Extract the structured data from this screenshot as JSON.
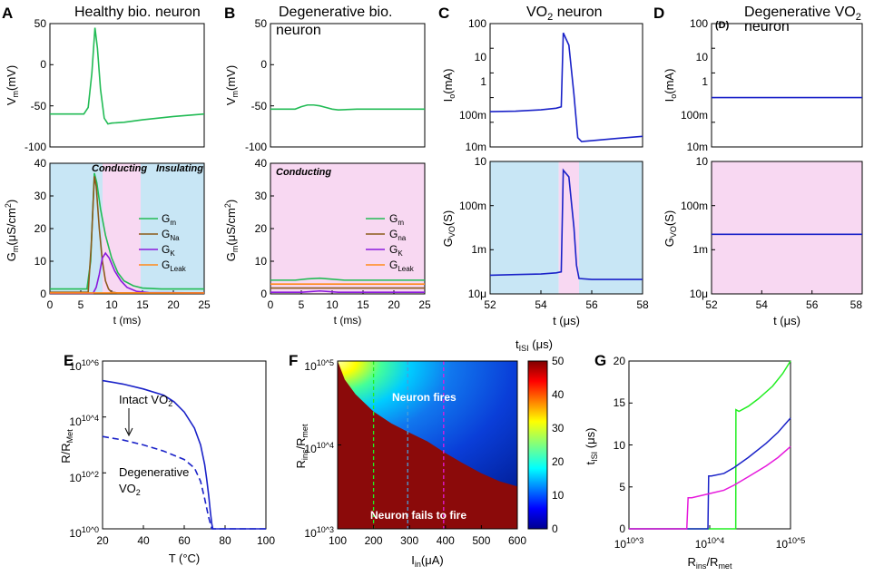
{
  "colors": {
    "green": "#22bb55",
    "brown": "#8a5a1a",
    "purple": "#8a1adc",
    "orange": "#ff8a1a",
    "blue": "#1a22c8",
    "lightblue": "#c8e6f5",
    "pink": "#f8d8f2",
    "magenta": "#e61adc",
    "dkred": "#8b0a0a",
    "curve_green": "#22ee22"
  },
  "panels": {
    "A": {
      "letter": "A",
      "title": "Healthy bio. neuron"
    },
    "B": {
      "letter": "B",
      "title": "Degenerative  bio.",
      "title2": "neuron"
    },
    "C": {
      "letter": "C",
      "title": "VO",
      "title_sub": "2",
      "title_tail": " neuron"
    },
    "D": {
      "letter": "D",
      "title": "Degenerative VO",
      "title_sub": "2",
      "title2": "neuron",
      "inner_tag": "(D)"
    },
    "E": {
      "letter": "E"
    },
    "F": {
      "letter": "F"
    },
    "G": {
      "letter": "G"
    }
  },
  "annotations": {
    "conducting": "Conducting",
    "insulating": "Insulating",
    "intact": "Intact VO",
    "intact_sub": "2",
    "degenerative": "Degenerative",
    "degenerative_vo": "VO",
    "degenerative_sub": "2",
    "fires": "Neuron fires",
    "fails": "Neuron fails to fire"
  },
  "legend": {
    "items": [
      {
        "main": "G",
        "sub": "m"
      },
      {
        "main": "G",
        "sub": "Na"
      },
      {
        "main": "G",
        "sub": "K"
      },
      {
        "main": "G",
        "sub": "Leak"
      }
    ],
    "items_b": [
      {
        "main": "G",
        "sub": "m"
      },
      {
        "main": "G",
        "sub": "na"
      },
      {
        "main": "G",
        "sub": "K"
      },
      {
        "main": "G",
        "sub": "Leak"
      }
    ]
  },
  "axes": {
    "vm": {
      "main": "V",
      "sub": "m",
      "tail": "(mV)"
    },
    "gm": {
      "main": "G",
      "sub": "m",
      "tail": "(μS/cm",
      "sup": "2",
      "end": ")"
    },
    "t_ms": "t (ms)",
    "io": {
      "main": "I",
      "sub": "o",
      "tail": "(mA)"
    },
    "gvo": {
      "main": "G",
      "sub": "VO",
      "tail": "(S)"
    },
    "t_us": "t (μs)",
    "r_rmet": {
      "main": "R/R",
      "sub": "Met"
    },
    "temp": "T (°C)",
    "rins": {
      "main": "R",
      "sub": "ins",
      "mid": "/R",
      "sub2": "met"
    },
    "iin": {
      "main": "I",
      "sub": "in",
      "tail": "(μA)"
    },
    "tisi": {
      "main": "t",
      "sub": "ISI",
      "tail": " (μs)"
    },
    "tisi_g": {
      "main": "t",
      "sub": "ISI",
      "tail": " (μs)"
    }
  },
  "chart_data": [
    {
      "id": "A-top",
      "type": "line",
      "title": "Healthy bio. neuron",
      "xlim": [
        0,
        25
      ],
      "ylim": [
        -100,
        50
      ],
      "ylabel": "Vm(mV)",
      "yticks": [
        "50",
        "0",
        "-50",
        "-100"
      ],
      "series": [
        {
          "name": "Vm",
          "color": "green",
          "x": [
            0,
            5.5,
            6.2,
            6.8,
            7.3,
            7.7,
            8.2,
            8.8,
            9.4,
            10,
            12,
            15,
            20,
            25
          ],
          "y": [
            -60,
            -60,
            -52,
            -10,
            45,
            20,
            -30,
            -65,
            -72,
            -71,
            -70,
            -67,
            -63,
            -60
          ]
        }
      ]
    },
    {
      "id": "A-bottom",
      "type": "line",
      "xlabel": "t (ms)",
      "ylabel": "Gm(μS/cm2)",
      "xlim": [
        0,
        25
      ],
      "ylim": [
        0,
        40
      ],
      "xticks": [
        "0",
        "5",
        "10",
        "15",
        "20",
        "25"
      ],
      "yticks": [
        "0",
        "10",
        "20",
        "30",
        "40"
      ],
      "regions": [
        {
          "from": 0,
          "to": 6.8,
          "label": "Conducting",
          "color": "lightblue"
        },
        {
          "from": 6.8,
          "to": 15,
          "label": "",
          "color": "pink"
        },
        {
          "from": 15,
          "to": 25,
          "label": "Insulating",
          "color": "lightblue"
        }
      ],
      "series": [
        {
          "name": "Gm",
          "color": "green",
          "x": [
            0,
            6,
            6.6,
            7.2,
            7.6,
            8.2,
            9,
            10,
            11,
            12,
            13.5,
            15,
            18,
            25
          ],
          "y": [
            1.5,
            1.5,
            10,
            37,
            34,
            26,
            18,
            11,
            6.5,
            4,
            2.5,
            1.8,
            1.5,
            1.5
          ]
        },
        {
          "name": "GNa",
          "color": "brown",
          "x": [
            0,
            6.2,
            6.7,
            7.2,
            7.5,
            8,
            8.5,
            9,
            9.5,
            10,
            11,
            25
          ],
          "y": [
            0.5,
            0.5,
            15,
            36,
            33,
            20,
            10,
            4,
            1.5,
            0.5,
            0.3,
            0.3
          ]
        },
        {
          "name": "GK",
          "color": "purple",
          "x": [
            0,
            7,
            7.5,
            8,
            8.5,
            9,
            9.6,
            10.5,
            11.5,
            12.5,
            14,
            16,
            25
          ],
          "y": [
            0.2,
            0.2,
            2,
            6,
            11,
            12.5,
            11,
            7,
            4,
            2,
            0.8,
            0.4,
            0.3
          ]
        },
        {
          "name": "GLeak",
          "color": "orange",
          "x": [
            0,
            25
          ],
          "y": [
            0.3,
            0.3
          ]
        }
      ]
    },
    {
      "id": "B-top",
      "type": "line",
      "title": "Degenerative bio. neuron",
      "xlim": [
        0,
        25
      ],
      "ylim": [
        -100,
        50
      ],
      "ylabel": "Vm(mV)",
      "yticks": [
        "50",
        "0",
        "-50",
        "-100"
      ],
      "series": [
        {
          "name": "Vm",
          "color": "green",
          "x": [
            0,
            4,
            5,
            6,
            7,
            8,
            9,
            10,
            11,
            14,
            18,
            25
          ],
          "y": [
            -54,
            -54,
            -51,
            -49,
            -49,
            -50,
            -52,
            -54,
            -55,
            -54,
            -54,
            -54
          ]
        }
      ]
    },
    {
      "id": "B-bottom",
      "type": "line",
      "xlabel": "t (ms)",
      "ylabel": "Gm(μS/cm2)",
      "xlim": [
        0,
        25
      ],
      "ylim": [
        0,
        40
      ],
      "xticks": [
        "0",
        "5",
        "10",
        "15",
        "20",
        "25"
      ],
      "yticks": [
        "0",
        "10",
        "20",
        "30",
        "40"
      ],
      "regions": [
        {
          "from": 0,
          "to": 25,
          "label": "Conducting",
          "color": "pink"
        }
      ],
      "series": [
        {
          "name": "Gm",
          "color": "green",
          "x": [
            0,
            4,
            6,
            8,
            10,
            12,
            25
          ],
          "y": [
            4.2,
            4.2,
            4.6,
            4.8,
            4.5,
            4.2,
            4.2
          ]
        },
        {
          "name": "Gna",
          "color": "brown",
          "x": [
            0,
            25
          ],
          "y": [
            1.8,
            1.8
          ]
        },
        {
          "name": "GK",
          "color": "purple",
          "x": [
            0,
            5,
            8,
            11,
            25
          ],
          "y": [
            0.5,
            0.5,
            0.9,
            0.5,
            0.5
          ]
        },
        {
          "name": "GLeak",
          "color": "orange",
          "x": [
            0,
            25
          ],
          "y": [
            3.0,
            3.0
          ]
        }
      ]
    },
    {
      "id": "C-top",
      "type": "line",
      "title": "VO2 neuron",
      "yscale": "log",
      "xlim": [
        52,
        58
      ],
      "ylim": [
        0.01,
        100
      ],
      "ylabel": "Io(mA)",
      "yticks": [
        "100",
        "10",
        "1",
        "100m",
        "10m"
      ],
      "series": [
        {
          "name": "Io",
          "color": "blue",
          "x": [
            52,
            53,
            54,
            54.6,
            54.8,
            54.88,
            55.1,
            55.3,
            55.45,
            55.6,
            56,
            57,
            58
          ],
          "y": [
            0.14,
            0.145,
            0.16,
            0.18,
            0.2,
            50,
            20,
            0.5,
            0.02,
            0.015,
            0.016,
            0.019,
            0.022
          ]
        }
      ]
    },
    {
      "id": "C-bottom",
      "type": "line",
      "yscale": "log",
      "xlabel": "t (μs)",
      "ylabel": "GVO(S)",
      "xlim": [
        52,
        58
      ],
      "ylim": [
        1e-05,
        10
      ],
      "xticks": [
        "52",
        "54",
        "56",
        "58"
      ],
      "yticks": [
        "10",
        "100m",
        "1m",
        "10μ"
      ],
      "regions": [
        {
          "from": 52,
          "to": 54.7,
          "label": "",
          "color": "lightblue"
        },
        {
          "from": 54.7,
          "to": 55.5,
          "label": "",
          "color": "pink"
        },
        {
          "from": 55.5,
          "to": 58,
          "label": "",
          "color": "lightblue"
        }
      ],
      "series": [
        {
          "name": "GVO",
          "color": "blue",
          "x": [
            52,
            53,
            54,
            54.6,
            54.8,
            54.88,
            55.1,
            55.3,
            55.4,
            55.5,
            56,
            58
          ],
          "y": [
            7e-05,
            7.5e-05,
            8e-05,
            9e-05,
            0.0001,
            4,
            2,
            0.01,
            0.0002,
            5e-05,
            4.5e-05,
            4.5e-05
          ]
        }
      ]
    },
    {
      "id": "D-top",
      "type": "line",
      "title": "Degenerative VO2 neuron",
      "yscale": "log",
      "xlim": [
        52,
        58
      ],
      "ylim": [
        0.01,
        100
      ],
      "ylabel": "Io(mA)",
      "yticks": [
        "100",
        "10",
        "1",
        "100m",
        "10m"
      ],
      "series": [
        {
          "name": "Io",
          "color": "blue",
          "x": [
            52,
            58
          ],
          "y": [
            0.4,
            0.4
          ]
        }
      ]
    },
    {
      "id": "D-bottom",
      "type": "line",
      "yscale": "log",
      "xlabel": "t (μs)",
      "ylabel": "GVO(S)",
      "xlim": [
        52,
        58
      ],
      "ylim": [
        1e-05,
        10
      ],
      "xticks": [
        "52",
        "54",
        "56",
        "58"
      ],
      "yticks": [
        "10",
        "100m",
        "1m",
        "10μ"
      ],
      "regions": [
        {
          "from": 52,
          "to": 58,
          "label": "",
          "color": "pink"
        }
      ],
      "series": [
        {
          "name": "GVO",
          "color": "blue",
          "x": [
            52,
            58
          ],
          "y": [
            0.005,
            0.005
          ]
        }
      ]
    },
    {
      "id": "E",
      "type": "line",
      "yscale": "log",
      "xlabel": "T (°C)",
      "ylabel": "R/RMet",
      "xlim": [
        20,
        100
      ],
      "ylim": [
        1,
        1000000
      ],
      "xticks": [
        "20",
        "40",
        "60",
        "80",
        "100"
      ],
      "yticks": [
        "10^6",
        "10^4",
        "10^2",
        "10^0"
      ],
      "series": [
        {
          "name": "Intact VO2",
          "color": "blue",
          "dash": false,
          "x": [
            20,
            30,
            40,
            50,
            55,
            60,
            65,
            68,
            70,
            71,
            72,
            72.8,
            73.5,
            74,
            75,
            80,
            90,
            100
          ],
          "y": [
            200000,
            150000,
            100000,
            60000,
            35000,
            15000,
            4000,
            1000,
            200,
            60,
            15,
            4,
            1.5,
            1,
            1,
            1,
            1,
            1
          ]
        },
        {
          "name": "Degenerative VO2",
          "color": "blue",
          "dash": true,
          "x": [
            20,
            30,
            40,
            50,
            60,
            65,
            68,
            70,
            72,
            73.5,
            75,
            80,
            90,
            100
          ],
          "y": [
            2000,
            1500,
            1000,
            600,
            300,
            150,
            50,
            12,
            2.5,
            1,
            1,
            1,
            1,
            1
          ]
        }
      ]
    },
    {
      "id": "F",
      "type": "heatmap",
      "xlabel": "Iin(μA)",
      "ylabel": "Rins/Rmet",
      "xlim": [
        100,
        600
      ],
      "ylim": [
        1000,
        100000
      ],
      "yscale": "log",
      "xticks": [
        "100",
        "200",
        "300",
        "400",
        "500",
        "600"
      ],
      "yticks": [
        "10^5",
        "10^4",
        "10^3"
      ],
      "colorbar": {
        "label": "tISI (μs)",
        "range": [
          0,
          50
        ],
        "ticks": [
          "0",
          "10",
          "20",
          "30",
          "40",
          "50"
        ]
      },
      "boundary_x": [
        100,
        120,
        150,
        200,
        250,
        300,
        350,
        400,
        450,
        500,
        550,
        600
      ],
      "boundary_y": [
        100000,
        60000,
        40000,
        25000,
        18000,
        14000,
        11000,
        8000,
        6000,
        4600,
        3700,
        3200
      ],
      "vlines": [
        {
          "x": 200,
          "color": "curve_green"
        },
        {
          "x": 295,
          "color": "#4a9fd8"
        },
        {
          "x": 395,
          "color": "magenta"
        }
      ]
    },
    {
      "id": "G",
      "type": "line",
      "xscale": "log",
      "xlabel": "Rins/Rmet",
      "ylabel": "tISI (μs)",
      "xlim": [
        1000,
        100000
      ],
      "ylim": [
        0,
        20
      ],
      "xticks": [
        "10^3",
        "10^4",
        "10^5"
      ],
      "yticks": [
        "0",
        "5",
        "10",
        "15",
        "20"
      ],
      "series": [
        {
          "name": "green",
          "color": "curve_green",
          "x": [
            1000,
            21000,
            21100,
            23000,
            30000,
            40000,
            60000,
            80000,
            100000
          ],
          "y": [
            0,
            0,
            14.2,
            14,
            14.6,
            15.5,
            17,
            18.5,
            20
          ]
        },
        {
          "name": "blue",
          "color": "blue",
          "x": [
            1000,
            9500,
            9700,
            10500,
            15000,
            20000,
            30000,
            50000,
            70000,
            100000
          ],
          "y": [
            0,
            0,
            6.3,
            6.3,
            6.6,
            7.3,
            8.5,
            10.2,
            11.5,
            13.2
          ]
        },
        {
          "name": "magenta",
          "color": "magenta",
          "x": [
            1000,
            5200,
            5400,
            6000,
            10000,
            15000,
            20000,
            30000,
            50000,
            70000,
            100000
          ],
          "y": [
            0,
            0,
            3.7,
            3.7,
            4.2,
            4.6,
            5.2,
            6.2,
            7.5,
            8.5,
            9.8
          ]
        }
      ]
    }
  ]
}
